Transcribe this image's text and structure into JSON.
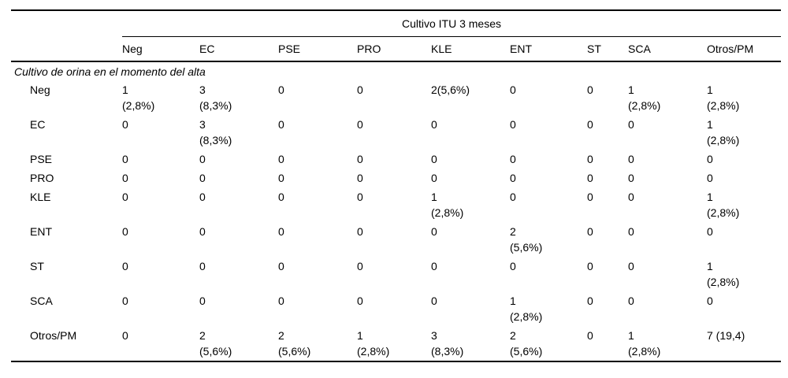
{
  "table": {
    "spanner": "Cultivo ITU 3 meses",
    "columns": [
      "Neg",
      "EC",
      "PSE",
      "PRO",
      "KLE",
      "ENT",
      "ST",
      "SCA",
      "Otros/PM"
    ],
    "section": "Cultivo de orina en el momento del alta",
    "rows": [
      {
        "label": "Neg",
        "cells": [
          "1\n(2,8%)",
          "3\n(8,3%)",
          "0",
          "0",
          "2(5,6%)",
          "0",
          "0",
          "1\n(2,8%)",
          "1\n(2,8%)"
        ]
      },
      {
        "label": "EC",
        "cells": [
          "0",
          "3\n(8,3%)",
          "0",
          "0",
          "0",
          "0",
          "0",
          "0",
          "1\n(2,8%)"
        ]
      },
      {
        "label": "PSE",
        "cells": [
          "0",
          "0",
          "0",
          "0",
          "0",
          "0",
          "0",
          "0",
          "0"
        ]
      },
      {
        "label": "PRO",
        "cells": [
          "0",
          "0",
          "0",
          "0",
          "0",
          "0",
          "0",
          "0",
          "0"
        ]
      },
      {
        "label": "KLE",
        "cells": [
          "0",
          "0",
          "0",
          "0",
          "1\n(2,8%)",
          "0",
          "0",
          "0",
          "1\n(2,8%)"
        ]
      },
      {
        "label": "ENT",
        "cells": [
          "0",
          "0",
          "0",
          "0",
          "0",
          "2\n(5,6%)",
          "0",
          "0",
          "0"
        ]
      },
      {
        "label": "ST",
        "cells": [
          "0",
          "0",
          "0",
          "0",
          "0",
          "0",
          "0",
          "0",
          "1\n(2,8%)"
        ]
      },
      {
        "label": "SCA",
        "cells": [
          "0",
          "0",
          "0",
          "0",
          "0",
          "1\n(2,8%)",
          "0",
          "0",
          "0"
        ]
      },
      {
        "label": "Otros/PM",
        "cells": [
          "0",
          "2\n(5,6%)",
          "2\n(5,6%)",
          "1\n(2,8%)",
          "3\n(8,3%)",
          "2\n(5,6%)",
          "0",
          "1\n(2,8%)",
          "7 (19,4)"
        ]
      }
    ]
  }
}
